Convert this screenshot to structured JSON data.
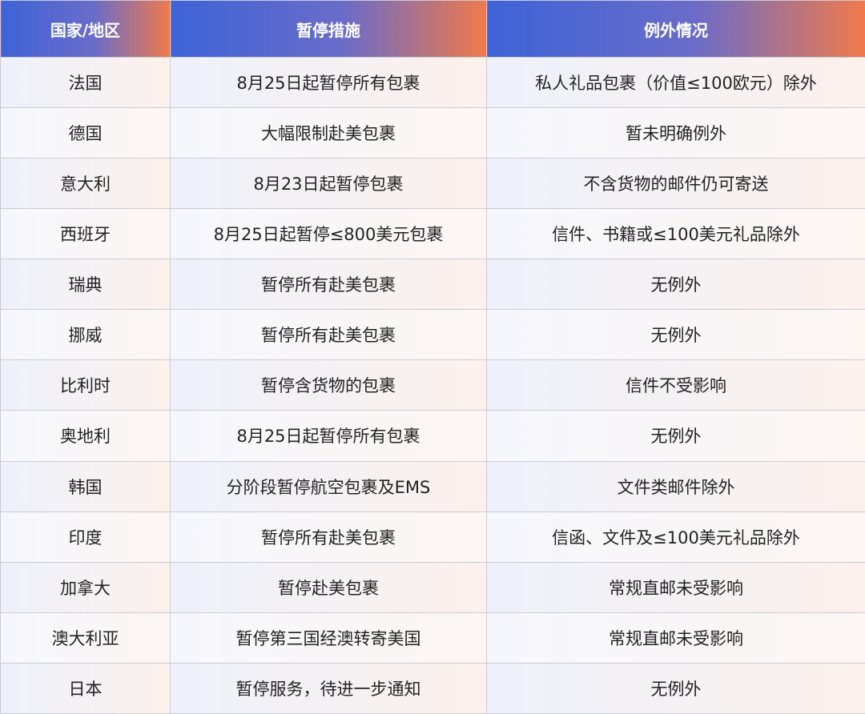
{
  "table": {
    "header": [
      "国家/地区",
      "暂停措施",
      "例外情况"
    ],
    "rows": [
      [
        "法国",
        "8月25日起暂停所有包裹",
        "私人礼品包裹（价值≤100欧元）除外"
      ],
      [
        "德国",
        "大幅限制赴美包裹",
        "暂未明确例外"
      ],
      [
        "意大利",
        "8月23日起暂停包裹",
        "不含货物的邮件仍可寄送"
      ],
      [
        "西班牙",
        "8月25日起暂停≤800美元包裹",
        "信件、书籍或≤100美元礼品除外"
      ],
      [
        "瑞典",
        "暂停所有赴美包裹",
        "无例外"
      ],
      [
        "挪威",
        "暂停所有赴美包裹",
        "无例外"
      ],
      [
        "比利时",
        "暂停含货物的包裹",
        "信件不受影响"
      ],
      [
        "奥地利",
        "8月25日起暂停所有包裹",
        "无例外"
      ],
      [
        "韩国",
        "分阶段暂停航空包裹及EMS",
        "文件类邮件除外"
      ],
      [
        "印度",
        "暂停所有赴美包裹",
        "信函、文件及≤100美元礼品除外"
      ],
      [
        "加拿大",
        "暂停赴美包裹",
        "常规直邮未受影响"
      ],
      [
        "澳大利亚",
        "暂停第三国经澳转寄美国",
        "常规直邮未受影响"
      ],
      [
        "日本",
        "暂停服务，待进一步通知",
        "无例外"
      ]
    ]
  }
}
